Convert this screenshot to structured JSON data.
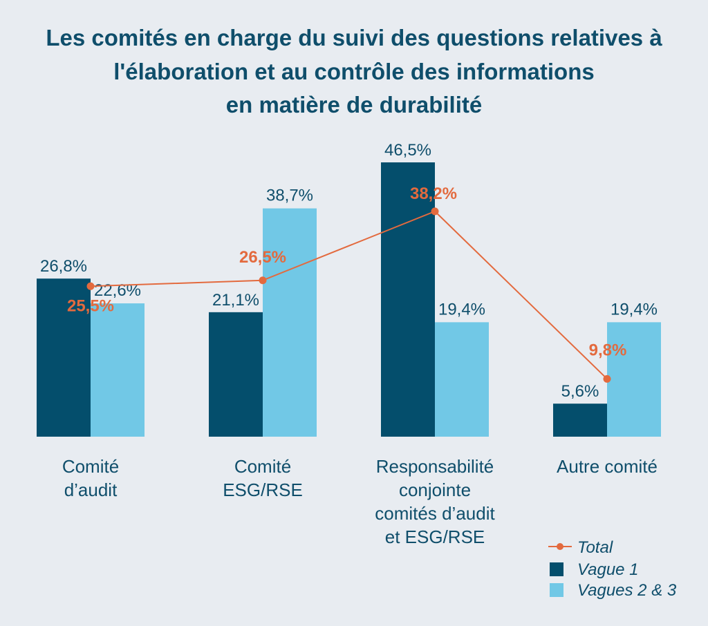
{
  "title_lines": [
    "Les comités en charge du suivi des questions relatives à",
    "l'élaboration et au contrôle des informations",
    "en matière de durabilité"
  ],
  "colors": {
    "vague1": "#044e6c",
    "vagues23": "#71c8e6",
    "total": "#e36a3e",
    "text": "#0f4e6b",
    "background": "#e8ecf1"
  },
  "chart_data": {
    "type": "bar",
    "categories": [
      [
        "Comité",
        "d’audit"
      ],
      [
        "Comité",
        "ESG/RSE"
      ],
      [
        "Responsabilité",
        "conjointe",
        "comités d’audit",
        "et ESG/RSE"
      ],
      [
        "Autre comité"
      ]
    ],
    "series": [
      {
        "name": "Vague 1",
        "kind": "bar",
        "values": [
          26.8,
          21.1,
          46.5,
          5.6
        ],
        "labels": [
          "26,8%",
          "21,1%",
          "46,5%",
          "5,6%"
        ]
      },
      {
        "name": "Vagues 2 & 3",
        "kind": "bar",
        "values": [
          22.6,
          38.7,
          19.4,
          19.4
        ],
        "labels": [
          "22,6%",
          "38,7%",
          "19,4%",
          "19,4%"
        ]
      },
      {
        "name": "Total",
        "kind": "line",
        "values": [
          25.5,
          26.5,
          38.2,
          9.8
        ],
        "labels": [
          "25,5%",
          "26,5%",
          "38,2%",
          "9,8%"
        ]
      }
    ],
    "legend": {
      "position": "bottom-right",
      "order": [
        "Total",
        "Vague 1",
        "Vagues 2 & 3"
      ]
    },
    "ylim": [
      0,
      46.5
    ],
    "grid": false
  }
}
